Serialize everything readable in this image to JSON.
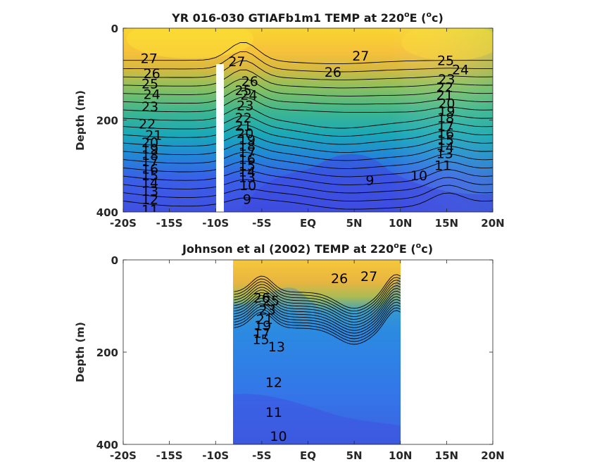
{
  "chart_data": [
    {
      "type": "contour",
      "title_main": "YR 016-030 GTIAFb1m1 TEMP at 220",
      "title_sup": "o",
      "title_tail": "E (",
      "title_unit_sup": "o",
      "title_unit": "c)",
      "ylabel": "Depth (m)",
      "xlim": [
        -20,
        20
      ],
      "ylim": [
        0,
        400
      ],
      "y_reversed": true,
      "x_ticks": [
        -20,
        -15,
        -10,
        -5,
        0,
        5,
        10,
        15,
        20
      ],
      "x_tick_labels": [
        "-20S",
        "-15S",
        "-10S",
        "-5S",
        "EQ",
        "5N",
        "10N",
        "15N",
        "20N"
      ],
      "y_ticks": [
        0,
        200,
        400
      ],
      "y_tick_labels": [
        "0",
        "200",
        "400"
      ],
      "colormap": "parula",
      "data_extent_lat": [
        -20,
        20
      ],
      "gap_lat": -10,
      "gap_depth_start": 80,
      "contour_labels": [
        {
          "text": "27",
          "lat": -17.2,
          "depth": 65
        },
        {
          "text": "26",
          "lat": -16.9,
          "depth": 98
        },
        {
          "text": "25",
          "lat": -17.1,
          "depth": 120
        },
        {
          "text": "24",
          "lat": -16.9,
          "depth": 143
        },
        {
          "text": "23",
          "lat": -17.1,
          "depth": 170
        },
        {
          "text": "22",
          "lat": -17.4,
          "depth": 208
        },
        {
          "text": "21",
          "lat": -16.7,
          "depth": 232
        },
        {
          "text": "20",
          "lat": -17.1,
          "depth": 248
        },
        {
          "text": "19",
          "lat": -17.1,
          "depth": 262
        },
        {
          "text": "18",
          "lat": -17.1,
          "depth": 276
        },
        {
          "text": "17",
          "lat": -17.1,
          "depth": 290
        },
        {
          "text": "16",
          "lat": -17.1,
          "depth": 306
        },
        {
          "text": "15",
          "lat": -17.1,
          "depth": 320
        },
        {
          "text": "14",
          "lat": -17.1,
          "depth": 336
        },
        {
          "text": "13",
          "lat": -17.1,
          "depth": 354
        },
        {
          "text": "12",
          "lat": -17.1,
          "depth": 372
        },
        {
          "text": "11",
          "lat": -17.1,
          "depth": 395
        },
        {
          "text": "27",
          "lat": -7.7,
          "depth": 72
        },
        {
          "text": "26",
          "lat": -6.3,
          "depth": 115
        },
        {
          "text": "25",
          "lat": -7.0,
          "depth": 135
        },
        {
          "text": "24",
          "lat": -6.4,
          "depth": 145
        },
        {
          "text": "23",
          "lat": -6.8,
          "depth": 168
        },
        {
          "text": "22",
          "lat": -7.0,
          "depth": 195
        },
        {
          "text": "21",
          "lat": -7.0,
          "depth": 212
        },
        {
          "text": "20",
          "lat": -6.8,
          "depth": 228
        },
        {
          "text": "19",
          "lat": -6.6,
          "depth": 242
        },
        {
          "text": "18",
          "lat": -6.6,
          "depth": 256
        },
        {
          "text": "17",
          "lat": -6.6,
          "depth": 270
        },
        {
          "text": "16",
          "lat": -6.6,
          "depth": 284
        },
        {
          "text": "15",
          "lat": -6.6,
          "depth": 298
        },
        {
          "text": "14",
          "lat": -6.6,
          "depth": 312
        },
        {
          "text": "13",
          "lat": -6.6,
          "depth": 324
        },
        {
          "text": "10",
          "lat": -6.5,
          "depth": 342
        },
        {
          "text": "9",
          "lat": -6.6,
          "depth": 372
        },
        {
          "text": "26",
          "lat": 2.7,
          "depth": 95
        },
        {
          "text": "27",
          "lat": 5.7,
          "depth": 60
        },
        {
          "text": "25",
          "lat": 14.9,
          "depth": 70
        },
        {
          "text": "24",
          "lat": 16.5,
          "depth": 90
        },
        {
          "text": "23",
          "lat": 15.0,
          "depth": 110
        },
        {
          "text": "22",
          "lat": 14.8,
          "depth": 128
        },
        {
          "text": "21",
          "lat": 14.8,
          "depth": 145
        },
        {
          "text": "20",
          "lat": 15.0,
          "depth": 163
        },
        {
          "text": "19",
          "lat": 15.0,
          "depth": 180
        },
        {
          "text": "18",
          "lat": 14.9,
          "depth": 195
        },
        {
          "text": "17",
          "lat": 14.9,
          "depth": 212
        },
        {
          "text": "16",
          "lat": 14.9,
          "depth": 228
        },
        {
          "text": "15",
          "lat": 14.9,
          "depth": 243
        },
        {
          "text": "14",
          "lat": 14.9,
          "depth": 258
        },
        {
          "text": "13",
          "lat": 14.8,
          "depth": 272
        },
        {
          "text": "11",
          "lat": 14.6,
          "depth": 298
        },
        {
          "text": "10",
          "lat": 12.0,
          "depth": 320
        },
        {
          "text": "9",
          "lat": 6.7,
          "depth": 330
        }
      ]
    },
    {
      "type": "contour",
      "title_main": "Johnson et al (2002) TEMP at 220",
      "title_sup": "o",
      "title_tail": "E (",
      "title_unit_sup": "o",
      "title_unit": "c)",
      "ylabel": "Depth (m)",
      "xlim": [
        -20,
        20
      ],
      "ylim": [
        0,
        400
      ],
      "y_reversed": true,
      "x_ticks": [
        -20,
        -15,
        -10,
        -5,
        0,
        5,
        10,
        15,
        20
      ],
      "x_tick_labels": [
        "-20S",
        "-15S",
        "-10S",
        "-5S",
        "EQ",
        "5N",
        "10N",
        "15N",
        "20N"
      ],
      "y_ticks": [
        0,
        200,
        400
      ],
      "y_tick_labels": [
        "0",
        "200",
        "400"
      ],
      "colormap": "parula",
      "data_extent_lat": [
        -8,
        10
      ],
      "contour_labels": [
        {
          "text": "26",
          "lat": 3.4,
          "depth": 40
        },
        {
          "text": "27",
          "lat": 6.6,
          "depth": 35
        },
        {
          "text": "26",
          "lat": -5.0,
          "depth": 82
        },
        {
          "text": "25",
          "lat": -4.0,
          "depth": 88
        },
        {
          "text": "23",
          "lat": -4.4,
          "depth": 108
        },
        {
          "text": "21",
          "lat": -4.7,
          "depth": 128
        },
        {
          "text": "19",
          "lat": -4.9,
          "depth": 142
        },
        {
          "text": "17",
          "lat": -5.0,
          "depth": 158
        },
        {
          "text": "15",
          "lat": -5.1,
          "depth": 172
        },
        {
          "text": "13",
          "lat": -3.4,
          "depth": 188
        },
        {
          "text": "12",
          "lat": -3.7,
          "depth": 265
        },
        {
          "text": "11",
          "lat": -3.7,
          "depth": 330
        },
        {
          "text": "10",
          "lat": -3.2,
          "depth": 382
        }
      ]
    }
  ]
}
